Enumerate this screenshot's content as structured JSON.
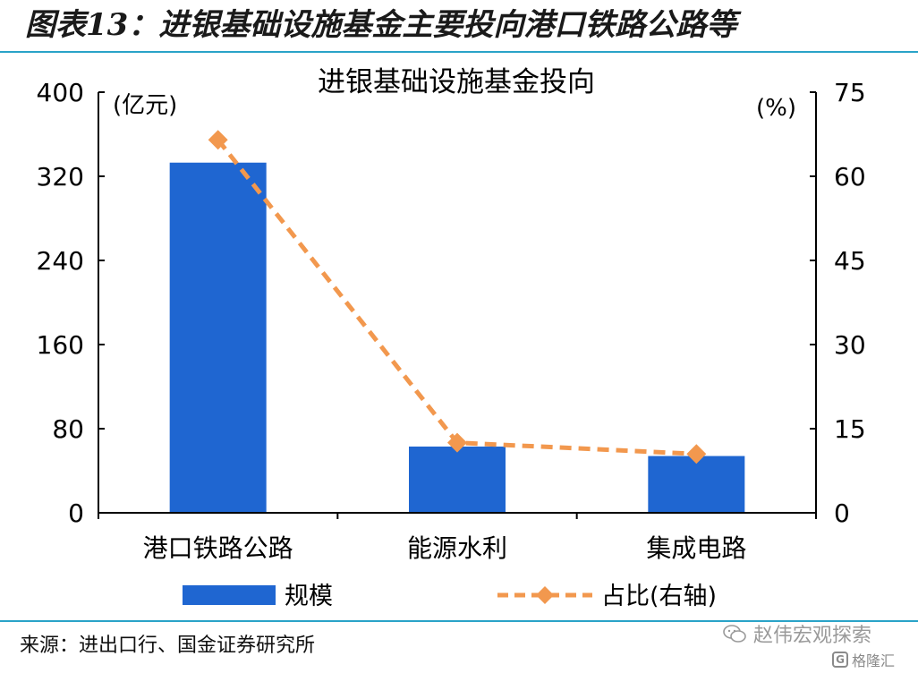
{
  "figure_title": "图表13：进银基础设施基金主要投向港口铁路公路等",
  "source_note": "来源：进出口行、国金证券研究所",
  "watermark": {
    "text": "赵伟宏观探索",
    "icon": "wechat-icon"
  },
  "corner_logo": {
    "text": "格隆汇",
    "icon": "glogo-icon"
  },
  "colors": {
    "bar": "#1F66D1",
    "line": "#F2984E",
    "rule": "#2aa3c8",
    "axis": "#000000"
  },
  "chart_data": {
    "type": "bar",
    "title": "进银基础设施基金投向",
    "ylabel": "(亿元)",
    "y2label": "(%)",
    "ylim": [
      0,
      400
    ],
    "y2lim": [
      0,
      75
    ],
    "yticks": [
      0,
      80,
      160,
      240,
      320,
      400
    ],
    "y2ticks": [
      0,
      15,
      30,
      45,
      60,
      75
    ],
    "categories": [
      "港口铁路公路",
      "能源水利",
      "集成电路"
    ],
    "series": [
      {
        "name": "规模",
        "type": "bar",
        "axis": "left",
        "values": [
          333,
          63,
          54
        ]
      },
      {
        "name": "占比(右轴)",
        "type": "line",
        "axis": "right",
        "style": "dashed",
        "marker": "diamond",
        "values": [
          66.5,
          12.5,
          10.5
        ]
      }
    ],
    "legend_position": "bottom",
    "grid": false
  }
}
